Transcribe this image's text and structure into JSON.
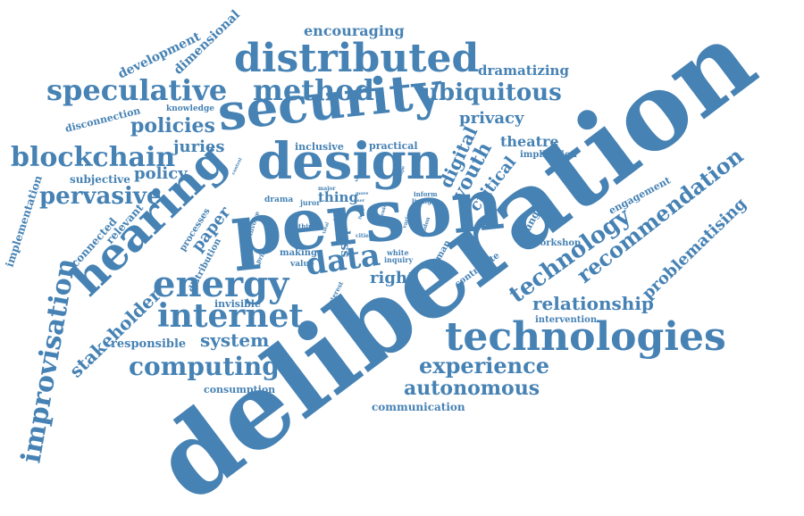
{
  "colors": {
    "word": "#4682b4",
    "background": "#ffffff"
  },
  "words": [
    {
      "text": "deliberation"
    },
    {
      "text": "person"
    },
    {
      "text": "security"
    },
    {
      "text": "design"
    },
    {
      "text": "hearing"
    },
    {
      "text": "distributed"
    },
    {
      "text": "technologies"
    },
    {
      "text": "energy"
    },
    {
      "text": "data"
    },
    {
      "text": "internet"
    },
    {
      "text": "speculative"
    },
    {
      "text": "method"
    },
    {
      "text": "improvisation"
    },
    {
      "text": "blockchain"
    },
    {
      "text": "ubiquitous"
    },
    {
      "text": "computing"
    },
    {
      "text": "pervasive"
    },
    {
      "text": "technology"
    },
    {
      "text": "recommendation"
    },
    {
      "text": "experience"
    },
    {
      "text": "autonomous"
    },
    {
      "text": "policies"
    },
    {
      "text": "youth"
    },
    {
      "text": "digital"
    },
    {
      "text": "privacy"
    },
    {
      "text": "relationship"
    },
    {
      "text": "stakeholder"
    },
    {
      "text": "problematising"
    },
    {
      "text": "system"
    },
    {
      "text": "juries"
    },
    {
      "text": "theatre"
    },
    {
      "text": "critical"
    },
    {
      "text": "right"
    },
    {
      "text": "policy"
    },
    {
      "text": "paper"
    },
    {
      "text": "encouraging"
    },
    {
      "text": "dramatizing"
    },
    {
      "text": "development"
    },
    {
      "text": "dimensional"
    },
    {
      "text": "responsible"
    },
    {
      "text": "subjective"
    },
    {
      "text": "connected"
    },
    {
      "text": "relevant"
    },
    {
      "text": "implementation"
    },
    {
      "text": "disconnection"
    },
    {
      "text": "knowledge"
    },
    {
      "text": "inclusive"
    },
    {
      "text": "practical"
    },
    {
      "text": "implication"
    },
    {
      "text": "engagement"
    },
    {
      "text": "young"
    },
    {
      "text": "workshop"
    },
    {
      "text": "intervention"
    },
    {
      "text": "communication"
    },
    {
      "text": "consumption"
    },
    {
      "text": "invisible"
    },
    {
      "text": "distribution"
    },
    {
      "text": "processes"
    },
    {
      "text": "contribute"
    },
    {
      "text": "human"
    },
    {
      "text": "loss"
    },
    {
      "text": "thing"
    },
    {
      "text": "making"
    },
    {
      "text": "value"
    },
    {
      "text": "drama"
    },
    {
      "text": "juror"
    },
    {
      "text": "white"
    },
    {
      "text": "inquiry"
    },
    {
      "text": "inform"
    },
    {
      "text": "living"
    },
    {
      "text": "involve"
    },
    {
      "text": "priority"
    },
    {
      "text": "think"
    },
    {
      "text": "interest"
    },
    {
      "text": "cities"
    },
    {
      "text": "london"
    },
    {
      "text": "various"
    },
    {
      "text": "trade"
    },
    {
      "text": "fund"
    },
    {
      "text": "major"
    },
    {
      "text": "more"
    },
    {
      "text": "user"
    },
    {
      "text": "shape"
    },
    {
      "text": "control"
    },
    {
      "text": "voice"
    },
    {
      "text": "jury"
    },
    {
      "text": "total"
    }
  ]
}
